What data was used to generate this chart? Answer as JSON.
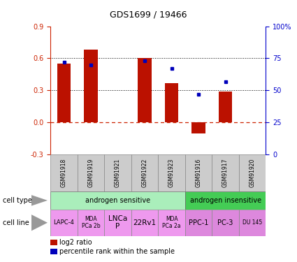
{
  "title": "GDS1699 / 19466",
  "samples": [
    "GSM91918",
    "GSM91919",
    "GSM91921",
    "GSM91922",
    "GSM91923",
    "GSM91916",
    "GSM91917",
    "GSM91920"
  ],
  "log2_ratio": [
    0.55,
    0.68,
    0.0,
    0.6,
    0.37,
    -0.1,
    0.29,
    0.0
  ],
  "percentile_rank": [
    72,
    70,
    0,
    73,
    67,
    47,
    57,
    0
  ],
  "bar_color": "#bb1100",
  "dot_color": "#0000bb",
  "cell_types": [
    {
      "label": "androgen sensitive",
      "start": 0,
      "end": 5,
      "color": "#aaeebb"
    },
    {
      "label": "androgen insensitive",
      "start": 5,
      "end": 8,
      "color": "#44cc55"
    }
  ],
  "cell_lines": [
    {
      "label": "LAPC-4",
      "start": 0,
      "end": 1,
      "color": "#ee99ee",
      "fontsize": 6.0
    },
    {
      "label": "MDA\nPCa 2b",
      "start": 1,
      "end": 2,
      "color": "#ee99ee",
      "fontsize": 5.5
    },
    {
      "label": "LNCa\nP",
      "start": 2,
      "end": 3,
      "color": "#ee99ee",
      "fontsize": 7.5
    },
    {
      "label": "22Rv1",
      "start": 3,
      "end": 4,
      "color": "#ee99ee",
      "fontsize": 7.5
    },
    {
      "label": "MDA\nPCa 2a",
      "start": 4,
      "end": 5,
      "color": "#ee99ee",
      "fontsize": 5.5
    },
    {
      "label": "PPC-1",
      "start": 5,
      "end": 6,
      "color": "#dd88dd",
      "fontsize": 7.0
    },
    {
      "label": "PC-3",
      "start": 6,
      "end": 7,
      "color": "#dd88dd",
      "fontsize": 7.0
    },
    {
      "label": "DU 145",
      "start": 7,
      "end": 8,
      "color": "#dd88dd",
      "fontsize": 5.5
    }
  ],
  "ylim_left": [
    -0.3,
    0.9
  ],
  "ylim_right": [
    0,
    100
  ],
  "yticks_left": [
    -0.3,
    0.0,
    0.3,
    0.6,
    0.9
  ],
  "yticks_right": [
    0,
    25,
    50,
    75,
    100
  ],
  "hlines": [
    0.3,
    0.6
  ],
  "left_axis_color": "#cc2200",
  "right_axis_color": "#0000cc",
  "background_color": "#ffffff"
}
